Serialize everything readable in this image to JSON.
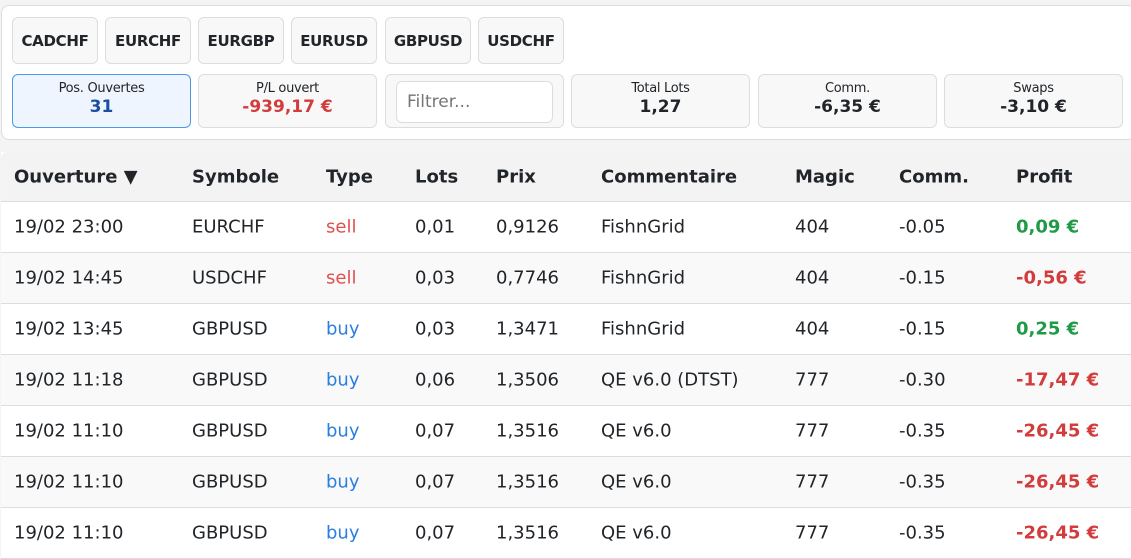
{
  "symbols": [
    "CADCHF",
    "EURCHF",
    "EURGBP",
    "EURUSD",
    "GBPUSD",
    "USDCHF"
  ],
  "stats": {
    "open_positions": {
      "label": "Pos. Ouvertes",
      "value": "31"
    },
    "open_pl": {
      "label": "P/L ouvert",
      "value": "-939,17 €"
    },
    "filter": {
      "placeholder": "Filtrer..."
    },
    "total_lots": {
      "label": "Total Lots",
      "value": "1,27"
    },
    "commission": {
      "label": "Comm.",
      "value": "-6,35 €"
    },
    "swaps": {
      "label": "Swaps",
      "value": "-3,10 €"
    }
  },
  "table": {
    "columns": [
      "Ouverture ▼",
      "Symbole",
      "Type",
      "Lots",
      "Prix",
      "Commentaire",
      "Magic",
      "Comm.",
      "Profit"
    ],
    "rows": [
      [
        "19/02 23:00",
        "EURCHF",
        "sell",
        "0,01",
        "0,9126",
        "FishnGrid",
        "404",
        "-0.05",
        "0,09 €"
      ],
      [
        "19/02 14:45",
        "USDCHF",
        "sell",
        "0,03",
        "0,7746",
        "FishnGrid",
        "404",
        "-0.15",
        "-0,56 €"
      ],
      [
        "19/02 13:45",
        "GBPUSD",
        "buy",
        "0,03",
        "1,3471",
        "FishnGrid",
        "404",
        "-0.15",
        "0,25 €"
      ],
      [
        "19/02 11:18",
        "GBPUSD",
        "buy",
        "0,06",
        "1,3506",
        "QE v6.0 (DTST)",
        "777",
        "-0.30",
        "-17,47 €"
      ],
      [
        "19/02 11:10",
        "GBPUSD",
        "buy",
        "0,07",
        "1,3516",
        "QE v6.0",
        "777",
        "-0.35",
        "-26,45 €"
      ],
      [
        "19/02 11:10",
        "GBPUSD",
        "buy",
        "0,07",
        "1,3516",
        "QE v6.0",
        "777",
        "-0.35",
        "-26,45 €"
      ],
      [
        "19/02 11:10",
        "GBPUSD",
        "buy",
        "0,07",
        "1,3516",
        "QE v6.0",
        "777",
        "-0.35",
        "-26,45 €"
      ]
    ]
  },
  "colors": {
    "negative": "#d23c3c",
    "positive": "#1e9a48",
    "sell": "#e05050",
    "buy": "#2a7ee0",
    "accent": "#4a9ae8"
  }
}
